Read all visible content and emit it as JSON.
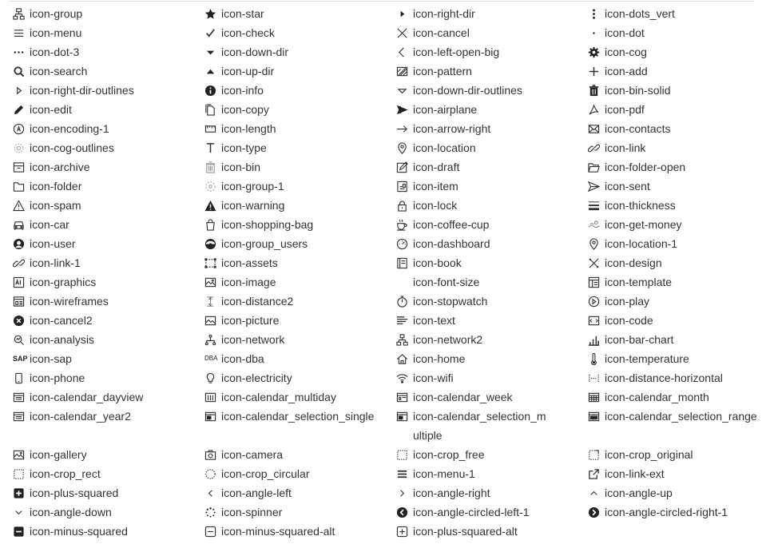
{
  "rows": [
    [
      "icon-group",
      "icon-star",
      "icon-right-dir",
      "icon-dots_vert"
    ],
    [
      "icon-menu",
      "icon-check",
      "icon-cancel",
      "icon-dot"
    ],
    [
      "icon-dot-3",
      "icon-down-dir",
      "icon-left-open-big",
      "icon-cog"
    ],
    [
      "icon-search",
      "icon-up-dir",
      "icon-pattern",
      "icon-add"
    ],
    [
      "icon-right-dir-outlines",
      "icon-info",
      "icon-down-dir-outlines",
      "icon-bin-solid"
    ],
    [
      "icon-edit",
      "icon-copy",
      "icon-airplane",
      "icon-pdf"
    ],
    [
      "icon-encoding-1",
      "icon-length",
      "icon-arrow-right",
      "icon-contacts"
    ],
    [
      "icon-cog-outlines",
      "icon-type",
      "icon-location",
      "icon-link"
    ],
    [
      "icon-archive",
      "icon-bin",
      "icon-draft",
      "icon-folder-open"
    ],
    [
      "icon-folder",
      "icon-group-1",
      "icon-item",
      "icon-sent"
    ],
    [
      "icon-spam",
      "icon-warning",
      "icon-lock",
      "icon-thickness"
    ],
    [
      "icon-car",
      "icon-shopping-bag",
      "icon-coffee-cup",
      "icon-get-money"
    ],
    [
      "icon-user",
      "icon-group_users",
      "icon-dashboard",
      "icon-location-1"
    ],
    [
      "icon-link-1",
      "icon-assets",
      "icon-book",
      "icon-design"
    ],
    [
      "icon-graphics",
      "icon-image",
      "icon-font-size",
      "icon-template"
    ],
    [
      "icon-wireframes",
      "icon-distance2",
      "icon-stopwatch",
      "icon-play"
    ],
    [
      "icon-cancel2",
      "icon-picture",
      "icon-text",
      "icon-code"
    ],
    [
      "icon-analysis",
      "icon-network",
      "icon-network2",
      "icon-bar-chart"
    ],
    [
      "icon-sap",
      "icon-dba",
      "icon-home",
      "icon-temperature"
    ],
    [
      "icon-phone",
      "icon-electricity",
      "icon-wifi",
      "icon-distance-horizontal"
    ],
    [
      "icon-calendar_dayview",
      "icon-calendar_multiday",
      "icon-calendar_week",
      "icon-calendar_month"
    ],
    [
      "icon-calendar_year2",
      "icon-calendar_selection_single",
      "icon-calendar_selection_multiple",
      "icon-calendar_selection_range"
    ],
    [
      "icon-gallery",
      "icon-camera",
      "icon-crop_free",
      "icon-crop_original"
    ],
    [
      "icon-crop_rect",
      "icon-crop_circular",
      "icon-menu-1",
      "icon-link-ext"
    ],
    [
      "icon-plus-squared",
      "icon-angle-left",
      "icon-angle-right",
      "icon-angle-up"
    ],
    [
      "icon-angle-down",
      "icon-spinner",
      "icon-angle-circled-left-1",
      "icon-angle-circled-right-1"
    ],
    [
      "icon-minus-squared",
      "icon-minus-squared-alt",
      "icon-plus-squared-alt",
      ""
    ]
  ],
  "sap_text": "SAP",
  "dba_text": "DBA"
}
